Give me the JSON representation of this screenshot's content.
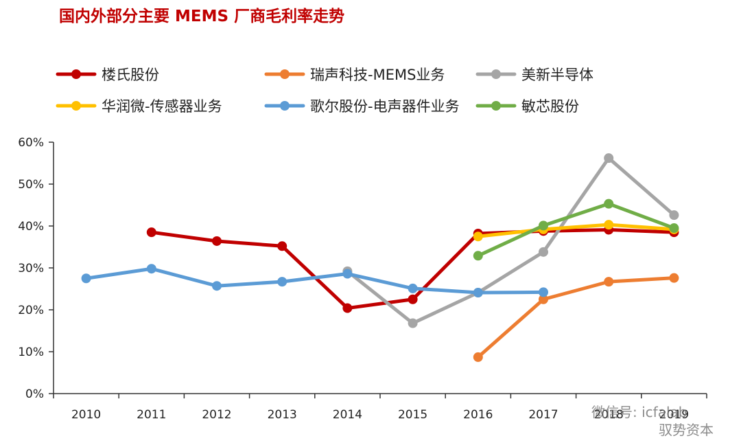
{
  "chart_data": {
    "type": "line",
    "title": "国内外部分主要 MEMS 厂商毛利率走势",
    "x": [
      "2010",
      "2011",
      "2012",
      "2013",
      "2014",
      "2015",
      "2016",
      "2017",
      "2018",
      "2019"
    ],
    "xticks": [
      "2010",
      "2011",
      "2012",
      "2013",
      "2014",
      "2015",
      "2016",
      "2017",
      "2018",
      "2019"
    ],
    "yticks": [
      "0%",
      "10%",
      "20%",
      "30%",
      "40%",
      "50%",
      "60%"
    ],
    "ylim": [
      0,
      60
    ],
    "legend_position": "top",
    "series": [
      {
        "name": "楼氏股份",
        "color": "#c00000",
        "values": [
          null,
          38.5,
          36.4,
          35.2,
          20.4,
          22.5,
          38.2,
          38.8,
          39.1,
          38.5
        ]
      },
      {
        "name": "瑞声科技-MEMS业务",
        "color": "#ed7d31",
        "values": [
          null,
          null,
          null,
          null,
          null,
          null,
          8.7,
          22.5,
          26.7,
          27.6
        ]
      },
      {
        "name": "美新半导体",
        "color": "#a5a5a5",
        "values": [
          null,
          null,
          null,
          null,
          29.2,
          16.8,
          24.1,
          33.8,
          56.2,
          42.6
        ]
      },
      {
        "name": "华润微-传感器业务",
        "color": "#ffc000",
        "values": [
          null,
          null,
          null,
          null,
          null,
          null,
          37.5,
          39.2,
          40.3,
          39.2
        ]
      },
      {
        "name": "歌尔股份-电声器件业务",
        "color": "#5b9bd5",
        "values": [
          27.5,
          29.8,
          25.7,
          26.7,
          28.6,
          25.1,
          24.1,
          24.2,
          null,
          null
        ]
      },
      {
        "name": "敏芯股份",
        "color": "#70ad47",
        "values": [
          null,
          null,
          null,
          null,
          null,
          null,
          32.9,
          40.1,
          45.3,
          39.5
        ]
      }
    ]
  },
  "watermark": {
    "line1": "微信号: icfalab",
    "line2": "驭势资本"
  }
}
